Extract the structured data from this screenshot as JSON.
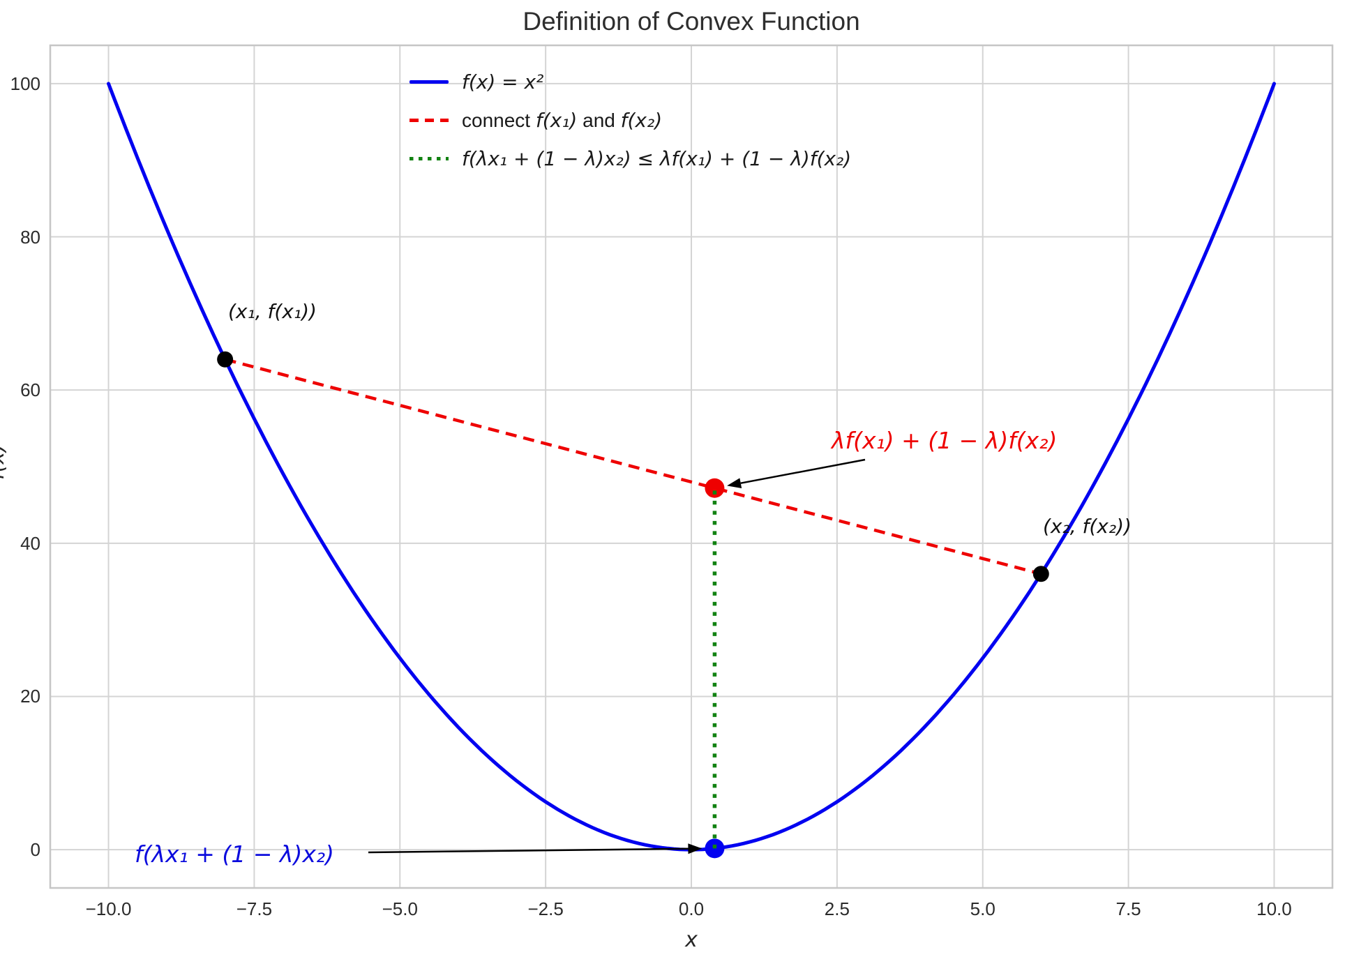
{
  "title": "Definition of Convex Function",
  "chart_data": {
    "type": "line",
    "title": "Definition of Convex Function",
    "xlabel": "x",
    "ylabel": "f(x)",
    "xlim": [
      -11,
      11
    ],
    "ylim": [
      -5,
      105
    ],
    "x_ticks": [
      -10,
      -7.5,
      -5,
      -2.5,
      0,
      2.5,
      5,
      7.5,
      10
    ],
    "x_tick_labels": [
      "−10.0",
      "−7.5",
      "−5.0",
      "−2.5",
      "0.0",
      "2.5",
      "5.0",
      "7.5",
      "10.0"
    ],
    "y_ticks": [
      0,
      20,
      40,
      60,
      80,
      100
    ],
    "y_tick_labels": [
      "0",
      "20",
      "40",
      "60",
      "80",
      "100"
    ],
    "grid": true,
    "legend_position": "upper center-left, no frame",
    "series": [
      {
        "name": "f(x) = x²",
        "kind": "function",
        "fn": "x^2",
        "x_range": [
          -10,
          10
        ],
        "color": "#0202f0",
        "style": "solid",
        "width": 5
      },
      {
        "name": "connect f(x₁) and f(x₂)",
        "kind": "segment",
        "points": [
          [
            -8,
            64
          ],
          [
            6,
            36
          ]
        ],
        "color": "#ee0000",
        "style": "dashed",
        "width": 4.5
      },
      {
        "name": "f(λx₁ + (1 − λ)x₂) ≤ λf(x₁) + (1 − λ)f(x₂)",
        "kind": "segment",
        "points": [
          [
            0.4,
            0.16
          ],
          [
            0.4,
            47.2
          ]
        ],
        "color": "#128212",
        "style": "dotted",
        "width": 5.5
      }
    ],
    "points": [
      {
        "label": "(x₁, f(x₁))",
        "x": -8,
        "y": 64,
        "color": "#000000",
        "r": 11.5
      },
      {
        "label": "(x₂, f(x₂))",
        "x": 6,
        "y": 36,
        "color": "#000000",
        "r": 11.5
      },
      {
        "label": "λf(x₁) + (1 − λ)f(x₂)",
        "x": 0.4,
        "y": 47.2,
        "color": "#ee0000",
        "r": 14
      },
      {
        "label": "f(λx₁ + (1 − λ)x₂)",
        "x": 0.4,
        "y": 0.16,
        "color": "#0202f0",
        "r": 14
      }
    ]
  },
  "legend": {
    "items": [
      {
        "label": "f(x) = x²",
        "color": "#0202f0",
        "style": "solid"
      },
      {
        "parts": [
          "connect ",
          "f(x₁)",
          " and ",
          "f(x₂)"
        ],
        "color": "#ee0000",
        "style": "dashed"
      },
      {
        "label": "f(λx₁ + (1 − λ)x₂) ≤ λf(x₁) + (1 − λ)f(x₂)",
        "color": "#128212",
        "style": "dotted"
      }
    ]
  },
  "annotations": {
    "p1_label": "(x₁, f(x₁))",
    "p2_label": "(x₂, f(x₂))",
    "chord_label": "λf(x₁) + (1 − λ)f(x₂)",
    "curve_label": "f(λx₁ + (1 − λ)x₂)"
  },
  "colors": {
    "curve_blue": "#0202f0",
    "chord_red": "#ee0000",
    "vertical_green": "#128212",
    "point_black": "#000000",
    "annotation_red": "#ee0000",
    "annotation_blue": "#0b0bdd",
    "grid": "#d4d4d4",
    "spine": "#c6c6c6",
    "text": "#262626",
    "arrow": "#000000"
  }
}
